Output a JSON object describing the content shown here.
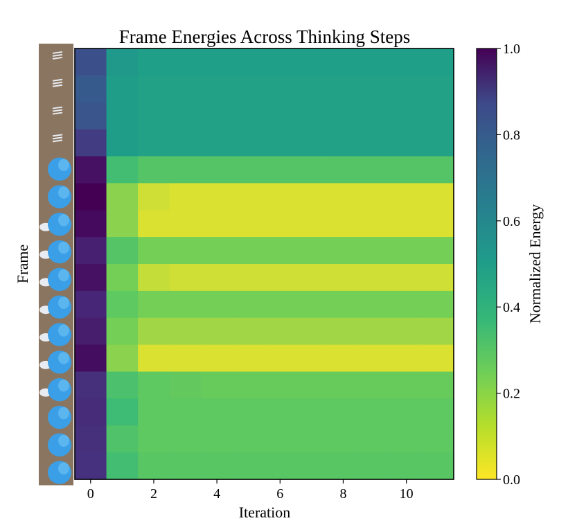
{
  "chart_data": {
    "type": "heatmap",
    "title": "Frame Energies Across Thinking Steps",
    "xlabel": "Iteration",
    "ylabel": "Frame",
    "x": [
      0,
      1,
      2,
      3,
      4,
      5,
      6,
      7,
      8,
      9,
      10,
      11
    ],
    "xlim": [
      -0.5,
      11.5
    ],
    "x_ticks": [
      0,
      2,
      4,
      6,
      8,
      10
    ],
    "x_tick_labels": [
      "0",
      "2",
      "4",
      "6",
      "8",
      "10"
    ],
    "frames": 16,
    "colormap": "viridis_r",
    "colorbar": {
      "label": "Normalized Energy",
      "range": [
        0,
        1
      ],
      "ticks": [
        0,
        0.2,
        0.4,
        0.6,
        0.8,
        1.0
      ],
      "tick_labels": [
        "0.0",
        "0.2",
        "0.4",
        "0.6",
        "0.8",
        "1.0"
      ]
    },
    "values": [
      [
        0.72,
        0.4,
        0.37,
        0.37,
        0.37,
        0.37,
        0.37,
        0.37,
        0.37,
        0.37,
        0.37,
        0.37
      ],
      [
        0.68,
        0.38,
        0.36,
        0.36,
        0.36,
        0.36,
        0.36,
        0.36,
        0.36,
        0.36,
        0.36,
        0.36
      ],
      [
        0.7,
        0.38,
        0.36,
        0.36,
        0.36,
        0.36,
        0.36,
        0.36,
        0.36,
        0.36,
        0.36,
        0.36
      ],
      [
        0.8,
        0.38,
        0.36,
        0.36,
        0.36,
        0.36,
        0.36,
        0.36,
        0.36,
        0.36,
        0.36,
        0.36
      ],
      [
        0.95,
        0.22,
        0.18,
        0.18,
        0.18,
        0.18,
        0.18,
        0.18,
        0.18,
        0.18,
        0.18,
        0.18
      ],
      [
        1.0,
        0.1,
        0.04,
        0.03,
        0.03,
        0.03,
        0.03,
        0.03,
        0.03,
        0.03,
        0.03,
        0.03
      ],
      [
        0.97,
        0.1,
        0.03,
        0.03,
        0.03,
        0.03,
        0.03,
        0.03,
        0.03,
        0.03,
        0.03,
        0.03
      ],
      [
        0.9,
        0.18,
        0.12,
        0.12,
        0.12,
        0.12,
        0.12,
        0.12,
        0.12,
        0.12,
        0.12,
        0.12
      ],
      [
        0.95,
        0.12,
        0.05,
        0.04,
        0.04,
        0.04,
        0.04,
        0.04,
        0.04,
        0.04,
        0.04,
        0.04
      ],
      [
        0.88,
        0.16,
        0.12,
        0.12,
        0.12,
        0.12,
        0.12,
        0.12,
        0.12,
        0.12,
        0.12,
        0.12
      ],
      [
        0.91,
        0.12,
        0.08,
        0.08,
        0.08,
        0.08,
        0.08,
        0.08,
        0.08,
        0.08,
        0.08,
        0.08
      ],
      [
        0.96,
        0.1,
        0.03,
        0.03,
        0.03,
        0.03,
        0.03,
        0.03,
        0.03,
        0.03,
        0.03,
        0.03
      ],
      [
        0.85,
        0.2,
        0.16,
        0.15,
        0.14,
        0.14,
        0.14,
        0.14,
        0.14,
        0.14,
        0.14,
        0.14
      ],
      [
        0.86,
        0.23,
        0.16,
        0.16,
        0.16,
        0.16,
        0.16,
        0.16,
        0.16,
        0.16,
        0.16,
        0.16
      ],
      [
        0.85,
        0.19,
        0.16,
        0.16,
        0.16,
        0.16,
        0.16,
        0.16,
        0.16,
        0.16,
        0.16,
        0.16
      ],
      [
        0.84,
        0.22,
        0.17,
        0.17,
        0.17,
        0.17,
        0.17,
        0.17,
        0.17,
        0.17,
        0.17,
        0.17
      ]
    ],
    "thumbnail_frames": [
      {
        "scene": "stripes"
      },
      {
        "scene": "stripes"
      },
      {
        "scene": "stripes"
      },
      {
        "scene": "stripes"
      },
      {
        "scene": "cloth"
      },
      {
        "scene": "cloth"
      },
      {
        "scene": "cloth-hand"
      },
      {
        "scene": "cloth-hand"
      },
      {
        "scene": "cloth-hand"
      },
      {
        "scene": "cloth-hand"
      },
      {
        "scene": "cloth-hand"
      },
      {
        "scene": "cloth-hand"
      },
      {
        "scene": "cloth-hand"
      },
      {
        "scene": "cloth"
      },
      {
        "scene": "cloth"
      },
      {
        "scene": "cloth"
      }
    ],
    "colors": {
      "table_brown": "#8a7560",
      "cloth_blue": "#3a9fe6",
      "hand_white": "#e8ecf2",
      "axis": "#000000"
    }
  }
}
